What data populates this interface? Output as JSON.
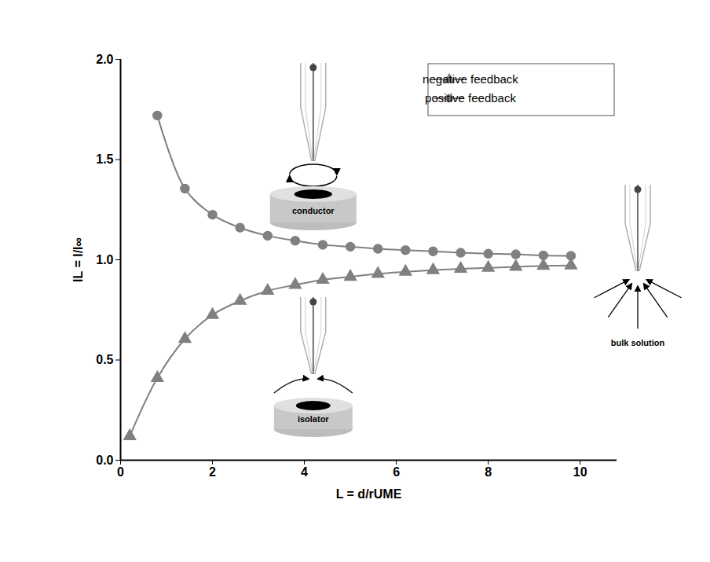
{
  "chart_data": {
    "type": "line",
    "x_label": "L = d/rUME",
    "y_label": "IL = I/I∞",
    "xlim": [
      0,
      10.8
    ],
    "ylim": [
      0,
      2
    ],
    "xticks": [
      0,
      2,
      4,
      6,
      8,
      10
    ],
    "yticks": [
      {
        "value": 0,
        "label": "0.0"
      },
      {
        "value": 0.5,
        "label": "0.5"
      },
      {
        "value": 1,
        "label": "1.0"
      },
      {
        "value": 1.5,
        "label": "1.5"
      },
      {
        "value": 2,
        "label": "2.0"
      }
    ],
    "legend": "top-right",
    "series": [
      {
        "name": "negative feedback",
        "color": "#808080",
        "marker": "triangle",
        "x": [
          0.2,
          0.8,
          1.4,
          2.0,
          2.6,
          3.2,
          3.8,
          4.4,
          5.0,
          5.6,
          6.2,
          6.8,
          7.4,
          8.0,
          8.6,
          9.2,
          9.8
        ],
        "values": [
          0.12,
          0.41,
          0.605,
          0.725,
          0.795,
          0.845,
          0.875,
          0.9,
          0.915,
          0.93,
          0.94,
          0.948,
          0.955,
          0.96,
          0.965,
          0.97,
          0.972
        ]
      },
      {
        "name": "positive feedback",
        "color": "#808080",
        "marker": "circle",
        "x": [
          0.8,
          1.4,
          2.0,
          2.6,
          3.2,
          3.8,
          4.4,
          5.0,
          5.6,
          6.2,
          6.8,
          7.4,
          8.0,
          8.6,
          9.2,
          9.8
        ],
        "values": [
          1.72,
          1.355,
          1.225,
          1.16,
          1.12,
          1.095,
          1.075,
          1.065,
          1.055,
          1.048,
          1.042,
          1.035,
          1.03,
          1.027,
          1.022,
          1.02
        ]
      }
    ],
    "annotations": [
      "conductor",
      "isolator",
      "bulk solution"
    ]
  }
}
